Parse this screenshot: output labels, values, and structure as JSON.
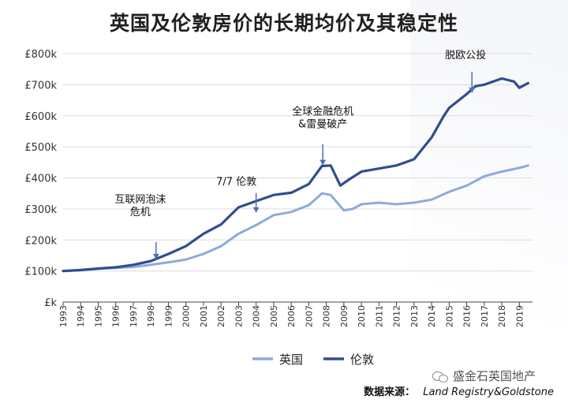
{
  "title": "英国及伦敦房价的长期均价及其稳定性",
  "watermark": "盛金石英国地产",
  "source_label": "数据来源：",
  "source_text": "Land Registry&Goldstone",
  "colors": {
    "uk": "#8eaadb",
    "london": "#2f4e8f",
    "grid": "#dcdcdc",
    "axis": "#444444",
    "arrow": "#4a72b8"
  },
  "chart_data": {
    "type": "line",
    "title": "英国及伦敦房价的长期均价及其稳定性",
    "xlabel": "",
    "ylabel": "",
    "xlim": [
      1993,
      2019.75
    ],
    "ylim": [
      0,
      800
    ],
    "yticks": [
      0,
      100,
      200,
      300,
      400,
      500,
      600,
      700,
      800
    ],
    "ytick_labels": [
      "£k",
      "£100k",
      "£200k",
      "£300k",
      "£400k",
      "£500k",
      "£600k",
      "£700k",
      "£800k"
    ],
    "xticks": [
      "1993",
      "1994",
      "1995",
      "1996",
      "1997",
      "1998",
      "1999",
      "2000",
      "2001",
      "2002",
      "2003",
      "2004",
      "2005",
      "2006",
      "2007",
      "2008",
      "2009",
      "2010",
      "2011",
      "2012",
      "2013",
      "2014",
      "2015",
      "2016",
      "2017",
      "2018",
      "2019"
    ],
    "grid": true,
    "legend_position": "bottom-center",
    "series": [
      {
        "name": "英国",
        "x": [
          1993,
          1994,
          1995,
          1996,
          1997,
          1998,
          1999,
          2000,
          2001,
          2002,
          2003,
          2004,
          2005,
          2006,
          2007,
          2007.75,
          2008.25,
          2009,
          2009.5,
          2010,
          2011,
          2012,
          2013,
          2014,
          2015,
          2016,
          2016.5,
          2017,
          2018,
          2019,
          2019.5
        ],
        "values": [
          100,
          102,
          107,
          110,
          113,
          120,
          128,
          137,
          155,
          180,
          220,
          248,
          280,
          290,
          312,
          350,
          345,
          295,
          300,
          315,
          320,
          315,
          320,
          330,
          355,
          375,
          390,
          405,
          420,
          432,
          440
        ]
      },
      {
        "name": "伦敦",
        "x": [
          1993,
          1994,
          1995,
          1996,
          1997,
          1998,
          1999,
          2000,
          2001,
          2002,
          2003,
          2004,
          2005,
          2006,
          2007,
          2007.75,
          2008.25,
          2008.8,
          2009.3,
          2010,
          2011,
          2012,
          2013,
          2014,
          2014.7,
          2015,
          2016,
          2016.5,
          2017,
          2018,
          2018.7,
          2019,
          2019.5
        ],
        "values": [
          100,
          103,
          108,
          112,
          120,
          132,
          155,
          180,
          220,
          250,
          305,
          325,
          345,
          352,
          380,
          438,
          440,
          375,
          395,
          420,
          430,
          440,
          460,
          530,
          600,
          625,
          670,
          695,
          700,
          720,
          710,
          690,
          705
        ]
      }
    ],
    "annotations": [
      {
        "text": "互联网泡沫\n危机",
        "x": 1998.3,
        "y": 130
      },
      {
        "text": "7/7 伦敦",
        "x": 2004,
        "y": 275
      },
      {
        "text": "全球金融危机\n&雷曼破产",
        "x": 2007.8,
        "y": 420
      },
      {
        "text": "脱欧公投",
        "x": 2016.3,
        "y": 620
      }
    ]
  }
}
